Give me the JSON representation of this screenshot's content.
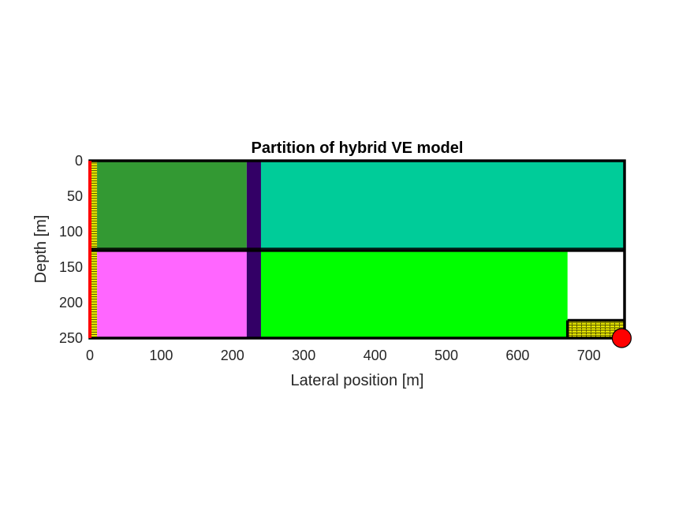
{
  "chart_data": {
    "type": "heatmap",
    "title": "Partition of hybrid VE model",
    "xlabel": "Lateral position [m]",
    "ylabel": "Depth [m]",
    "xlim": [
      0,
      750
    ],
    "ylim": [
      0,
      250
    ],
    "y_reversed": true,
    "grid": false,
    "xticks": [
      0,
      100,
      200,
      300,
      400,
      500,
      600,
      700
    ],
    "xtick_labels": [
      "0",
      "100",
      "200",
      "300",
      "400",
      "500",
      "600",
      "700"
    ],
    "yticks": [
      0,
      50,
      100,
      150,
      200,
      250
    ],
    "ytick_labels": [
      "0",
      "50",
      "100",
      "150",
      "200",
      "250"
    ],
    "regions": [
      {
        "name": "upper-left-block",
        "x": [
          10,
          220
        ],
        "y": [
          0,
          125
        ],
        "color": "#339933"
      },
      {
        "name": "upper-right-block",
        "x": [
          240,
          750
        ],
        "y": [
          0,
          125
        ],
        "color": "#00cc99"
      },
      {
        "name": "lower-left-block",
        "x": [
          10,
          220
        ],
        "y": [
          128,
          250
        ],
        "color": "#ff66ff"
      },
      {
        "name": "lower-right-block",
        "x": [
          240,
          670
        ],
        "y": [
          128,
          250
        ],
        "color": "#00ff00"
      },
      {
        "name": "fault-zone-column",
        "x": [
          220,
          240
        ],
        "y": [
          0,
          250
        ],
        "color": "#330066"
      },
      {
        "name": "left-fine-column",
        "x": [
          0,
          10
        ],
        "y": [
          0,
          250
        ],
        "color": "#e6e600"
      },
      {
        "name": "corner-fine-block",
        "x": [
          670,
          750
        ],
        "y": [
          225,
          250
        ],
        "color": "#e6e600"
      }
    ],
    "boundary_lines": [
      {
        "name": "horizontal-divider",
        "x": [
          0,
          750
        ],
        "y": [
          126.5,
          126.5
        ]
      },
      {
        "name": "corner-block-top",
        "x": [
          670,
          750
        ],
        "y": [
          225,
          225
        ]
      },
      {
        "name": "corner-block-left",
        "x": [
          670,
          670
        ],
        "y": [
          225,
          250
        ]
      }
    ],
    "left_boundary": {
      "x": 0,
      "color": "#ff0000"
    },
    "well": {
      "x": 746,
      "y": 250,
      "color": "#ff0000",
      "edge_color": "#000000"
    }
  }
}
